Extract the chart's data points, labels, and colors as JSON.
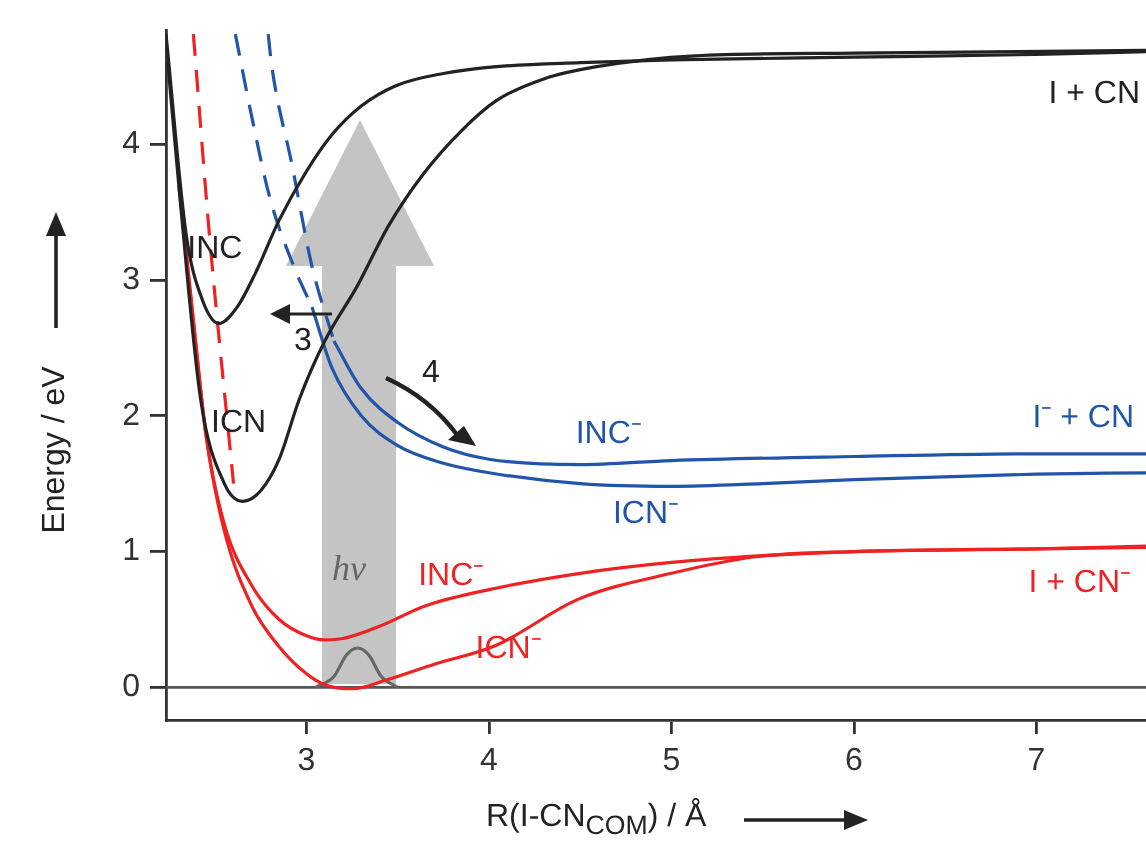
{
  "chart_data": {
    "type": "line",
    "xlabel": "R(I-CN$_{COM}$) / Å",
    "ylabel": "Energy / eV",
    "xlim": [
      2.23,
      7.6
    ],
    "ylim": [
      -0.24,
      4.84
    ],
    "xticks": [
      3,
      4,
      5,
      6,
      7
    ],
    "yticks": [
      0,
      1,
      2,
      3,
      4
    ],
    "marker": "none",
    "series": [
      {
        "name": "INC",
        "color": "#222222",
        "x": [
          2.23,
          2.34,
          2.43,
          2.52,
          2.62,
          2.72,
          2.85,
          3.0,
          3.14,
          3.3,
          3.49,
          3.75,
          4.04,
          4.5,
          5,
          6,
          7,
          7.6
        ],
        "values": [
          4.81,
          3.34,
          2.85,
          2.68,
          2.8,
          3.05,
          3.44,
          3.8,
          4.07,
          4.28,
          4.43,
          4.52,
          4.57,
          4.6,
          4.62,
          4.64,
          4.66,
          4.68
        ]
      },
      {
        "name": "ICN",
        "color": "#222222",
        "x": [
          2.24,
          2.3,
          2.42,
          2.55,
          2.65,
          2.75,
          2.85,
          2.96,
          3.1,
          3.28,
          3.45,
          3.64,
          3.85,
          4.04,
          4.3,
          4.59,
          5.13,
          6,
          7.6
        ],
        "values": [
          4.6,
          3.7,
          2.12,
          1.5,
          1.37,
          1.45,
          1.68,
          2.12,
          2.55,
          2.96,
          3.4,
          3.78,
          4.1,
          4.32,
          4.48,
          4.57,
          4.65,
          4.67,
          4.69
        ]
      },
      {
        "color": "#2255aa",
        "line_style": "dashed",
        "x": [
          2.61,
          2.7,
          2.8,
          2.93,
          3.03
        ],
        "values": [
          4.81,
          4.2,
          3.6,
          3.1,
          2.8
        ]
      },
      {
        "color": "#2255aa",
        "line_style": "dashed",
        "x": [
          2.79,
          2.81,
          2.92,
          3.03,
          3.15
        ],
        "values": [
          4.81,
          4.57,
          3.85,
          3.1,
          2.55
        ]
      },
      {
        "name": "INC⁻",
        "color": "#2255aa",
        "x": [
          3.15,
          3.3,
          3.5,
          3.75,
          4.0,
          4.5,
          5,
          6,
          7,
          7.6
        ],
        "values": [
          2.55,
          2.2,
          1.95,
          1.77,
          1.68,
          1.64,
          1.67,
          1.7,
          1.72,
          1.72
        ]
      },
      {
        "name": "ICN⁻",
        "color": "#2255aa",
        "x": [
          3.03,
          3.14,
          3.3,
          3.5,
          3.75,
          4.0,
          4.5,
          5.0,
          5.5,
          6.0,
          7.0,
          7.6
        ],
        "values": [
          2.8,
          2.35,
          2.0,
          1.78,
          1.65,
          1.58,
          1.5,
          1.48,
          1.5,
          1.53,
          1.57,
          1.58
        ]
      },
      {
        "color": "#ee2222",
        "line_style": "dashed",
        "x": [
          2.38,
          2.47,
          2.6
        ],
        "values": [
          4.81,
          3.3,
          1.5
        ]
      },
      {
        "name": "INC⁻",
        "color": "#ee2222",
        "x": [
          2.31,
          2.38,
          2.45,
          2.55,
          2.7,
          2.85,
          3.0,
          3.1,
          3.2,
          3.4,
          3.65,
          4.0,
          4.5,
          5.0,
          5.5,
          6,
          7,
          7.6
        ],
        "values": [
          3.6,
          2.7,
          1.85,
          1.2,
          0.75,
          0.5,
          0.38,
          0.35,
          0.36,
          0.45,
          0.6,
          0.72,
          0.84,
          0.92,
          0.97,
          1.0,
          1.02,
          1.04
        ]
      },
      {
        "name": "ICN⁻",
        "color": "#ee2222",
        "x": [
          2.3,
          2.38,
          2.45,
          2.55,
          2.7,
          2.85,
          3.0,
          3.1,
          3.25,
          3.45,
          3.7,
          4.04,
          4.49,
          5.0,
          5.45,
          6,
          7,
          7.6
        ],
        "values": [
          3.7,
          2.7,
          1.85,
          1.15,
          0.6,
          0.3,
          0.1,
          0.02,
          -0.01,
          0.06,
          0.17,
          0.31,
          0.65,
          0.84,
          0.96,
          1.0,
          1.02,
          1.03
        ]
      },
      {
        "color": "#666666",
        "x": [
          3.05,
          3.15,
          3.22,
          3.28,
          3.34,
          3.41,
          3.5
        ],
        "values": [
          0,
          0.08,
          0.24,
          0.29,
          0.24,
          0.08,
          0
        ]
      }
    ],
    "ref_lines": [
      {
        "axis": "y",
        "value": 0,
        "color": "#555555"
      }
    ],
    "annotations": [
      "hν",
      "3",
      "4",
      "I + CN",
      "I⁻ + CN",
      "I + CN⁻"
    ]
  }
}
